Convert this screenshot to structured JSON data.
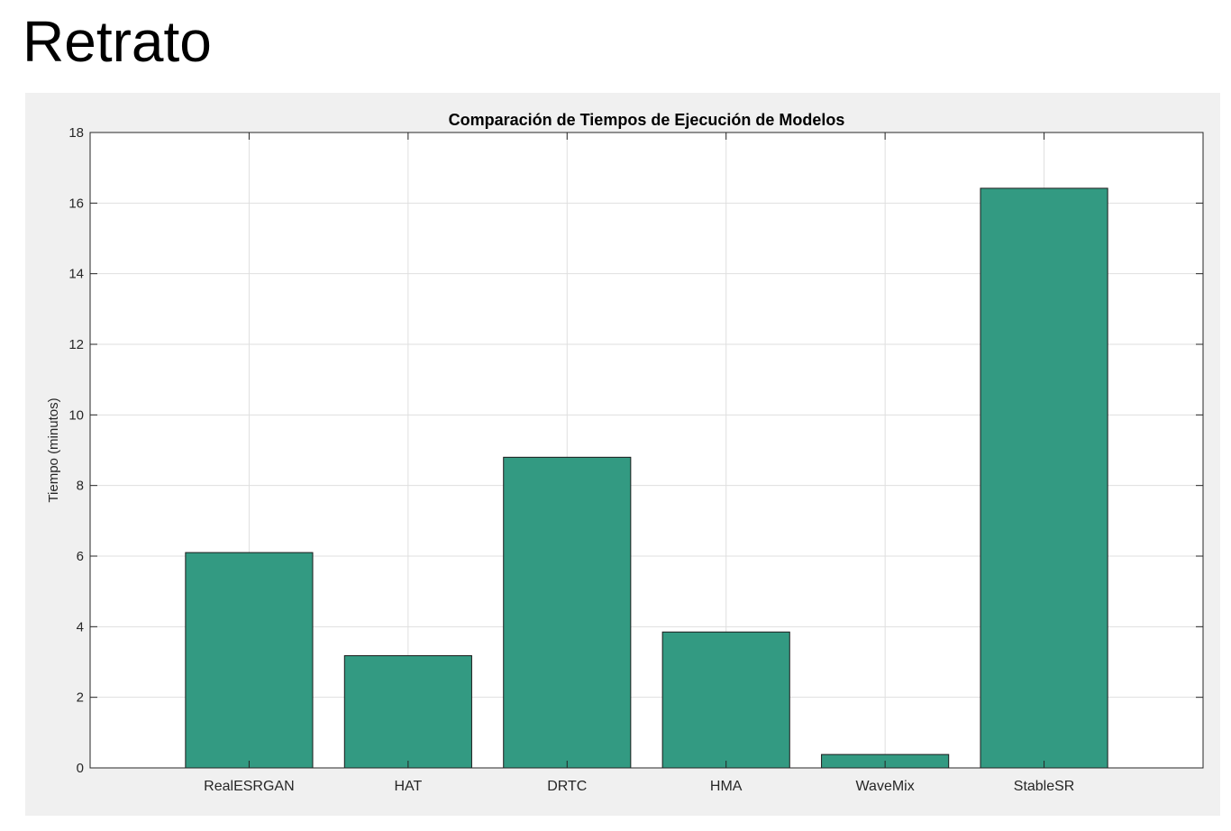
{
  "slide": {
    "title": "Retrato"
  },
  "colors": {
    "bar": "#339a82",
    "bar_edge": "#1a1a1a",
    "grid": "#dfdfdf",
    "axes_edge": "#262626",
    "figure_bg": "#f0f0f0",
    "axes_bg": "#ffffff"
  },
  "chart_data": {
    "type": "bar",
    "title": "Comparación de Tiempos de Ejecución de Modelos",
    "xlabel": "",
    "ylabel": "Tiempo (minutos)",
    "categories": [
      "RealESRGAN",
      "HAT",
      "DRTC",
      "HMA",
      "WaveMix",
      "StableSR"
    ],
    "values": [
      6.1,
      3.18,
      8.8,
      3.85,
      0.38,
      16.42
    ],
    "ylim": [
      0,
      18
    ],
    "yticks": [
      0,
      2,
      4,
      6,
      8,
      10,
      12,
      14,
      16,
      18
    ],
    "xlim": [
      0,
      7
    ],
    "grid": true,
    "legend": "none"
  }
}
